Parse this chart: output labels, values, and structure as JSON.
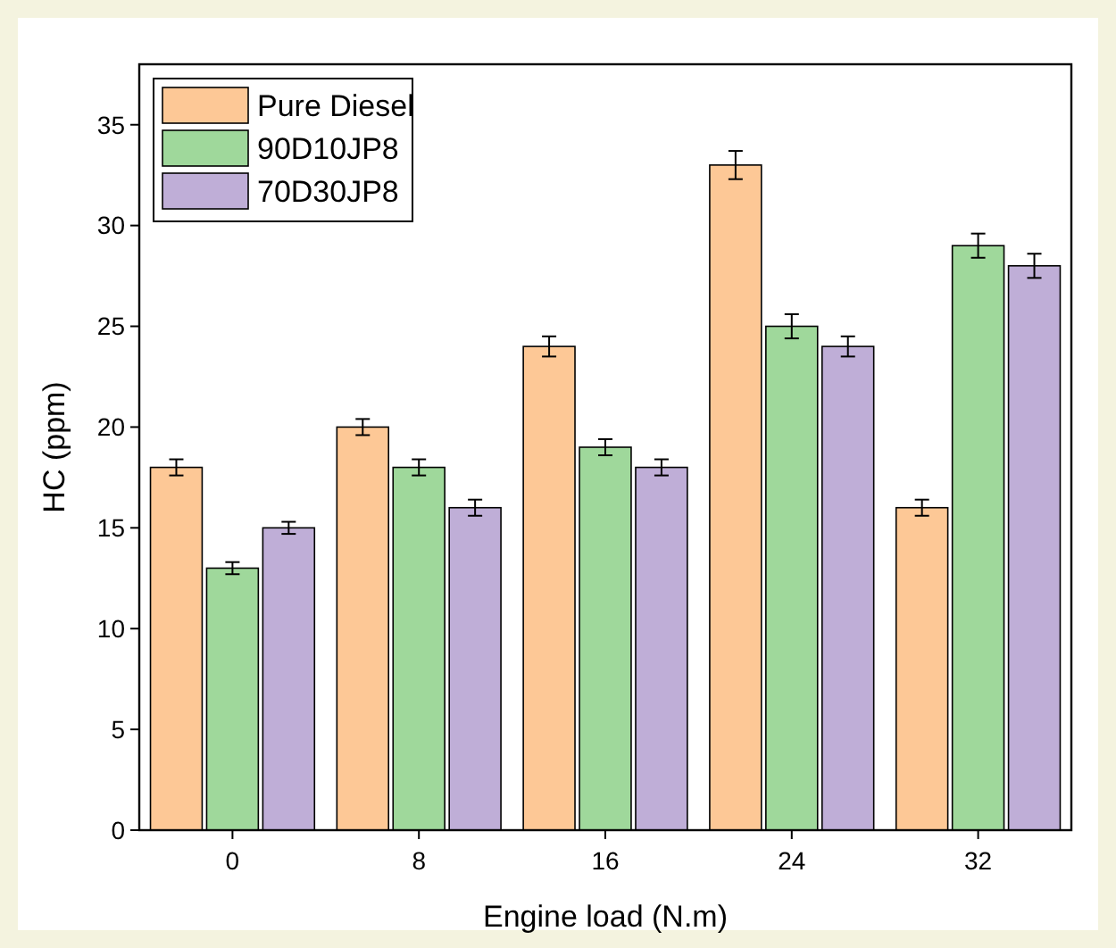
{
  "chart_data": {
    "type": "bar",
    "xlabel": "Engine load (N.m)",
    "ylabel": "HC (ppm)",
    "categories": [
      "0",
      "8",
      "16",
      "24",
      "32"
    ],
    "series": [
      {
        "name": "Pure Diesel",
        "color": "#fdc896",
        "values": [
          18,
          20,
          24,
          33,
          16
        ],
        "errors": [
          0.4,
          0.4,
          0.5,
          0.7,
          0.4
        ]
      },
      {
        "name": "90D10JP8",
        "color": "#9fd89b",
        "values": [
          13,
          18,
          19,
          25,
          29
        ],
        "errors": [
          0.3,
          0.4,
          0.4,
          0.6,
          0.6
        ]
      },
      {
        "name": "70D30JP8",
        "color": "#bfaed7",
        "values": [
          15,
          16,
          18,
          24,
          28
        ],
        "errors": [
          0.3,
          0.4,
          0.4,
          0.5,
          0.6
        ]
      }
    ],
    "ylim": [
      0,
      38
    ],
    "yticks": [
      0,
      5,
      10,
      15,
      20,
      25,
      30,
      35
    ],
    "legend": "top left",
    "grid": false
  }
}
